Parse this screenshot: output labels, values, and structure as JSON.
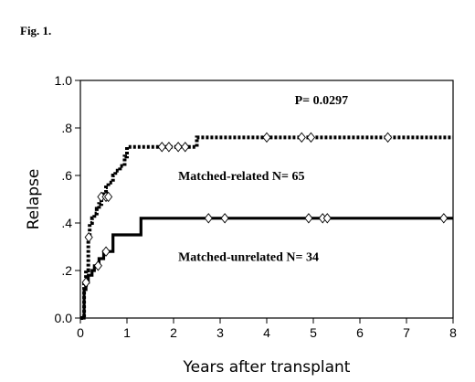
{
  "figure_label": "Fig. 1.",
  "chart_data": {
    "type": "line",
    "title": "",
    "xlabel": "Years after transplant",
    "ylabel": "Relapse",
    "xlim": [
      0,
      8
    ],
    "ylim": [
      0,
      1
    ],
    "x_ticks": [
      0,
      1,
      2,
      3,
      4,
      5,
      6,
      7,
      8
    ],
    "y_ticks": [
      0,
      0.2,
      0.4,
      0.6,
      0.8,
      1.0
    ],
    "x_tick_labels": [
      "0",
      "1",
      "2",
      "3",
      "4",
      "5",
      "6",
      "7",
      "8"
    ],
    "y_tick_labels": [
      "0.0",
      ".2",
      ".4",
      ".6",
      ".8",
      "1.0"
    ],
    "step": true,
    "grid": false,
    "annotations": [
      {
        "text": "P= 0.0297",
        "x": 4.6,
        "y": 0.9
      },
      {
        "text": "Matched-related N=  65",
        "x": 2.1,
        "y": 0.58
      },
      {
        "text": "Matched-unrelated N= 34",
        "x": 2.1,
        "y": 0.24
      }
    ],
    "series": [
      {
        "label": "Matched-related N=  65",
        "style": "dotted",
        "x": [
          0,
          0.08,
          0.12,
          0.17,
          0.2,
          0.25,
          0.3,
          0.35,
          0.4,
          0.45,
          0.5,
          0.55,
          0.6,
          0.7,
          0.75,
          0.85,
          0.95,
          1.0,
          1.5,
          2.4,
          2.5,
          8.0
        ],
        "y": [
          0,
          0.14,
          0.2,
          0.34,
          0.4,
          0.42,
          0.44,
          0.46,
          0.48,
          0.51,
          0.53,
          0.55,
          0.57,
          0.6,
          0.62,
          0.64,
          0.68,
          0.72,
          0.72,
          0.72,
          0.76,
          0.76
        ],
        "censored": [
          [
            0.18,
            0.34
          ],
          [
            0.45,
            0.51
          ],
          [
            0.55,
            0.51
          ],
          [
            0.6,
            0.51
          ],
          [
            1.75,
            0.72
          ],
          [
            1.9,
            0.72
          ],
          [
            2.1,
            0.72
          ],
          [
            2.25,
            0.72
          ],
          [
            4.0,
            0.76
          ],
          [
            4.75,
            0.76
          ],
          [
            4.95,
            0.76
          ],
          [
            6.6,
            0.76
          ]
        ]
      },
      {
        "label": "Matched-unrelated N= 34",
        "style": "solid",
        "x": [
          0,
          0.08,
          0.12,
          0.17,
          0.25,
          0.3,
          0.4,
          0.5,
          0.7,
          1.0,
          1.3,
          8.0
        ],
        "y": [
          0,
          0.12,
          0.15,
          0.18,
          0.2,
          0.22,
          0.25,
          0.28,
          0.35,
          0.35,
          0.42,
          0.42
        ],
        "censored": [
          [
            0.12,
            0.15
          ],
          [
            0.38,
            0.22
          ],
          [
            0.55,
            0.28
          ],
          [
            2.75,
            0.42
          ],
          [
            3.1,
            0.42
          ],
          [
            4.9,
            0.42
          ],
          [
            5.2,
            0.42
          ],
          [
            5.3,
            0.42
          ],
          [
            7.8,
            0.42
          ]
        ]
      }
    ]
  }
}
